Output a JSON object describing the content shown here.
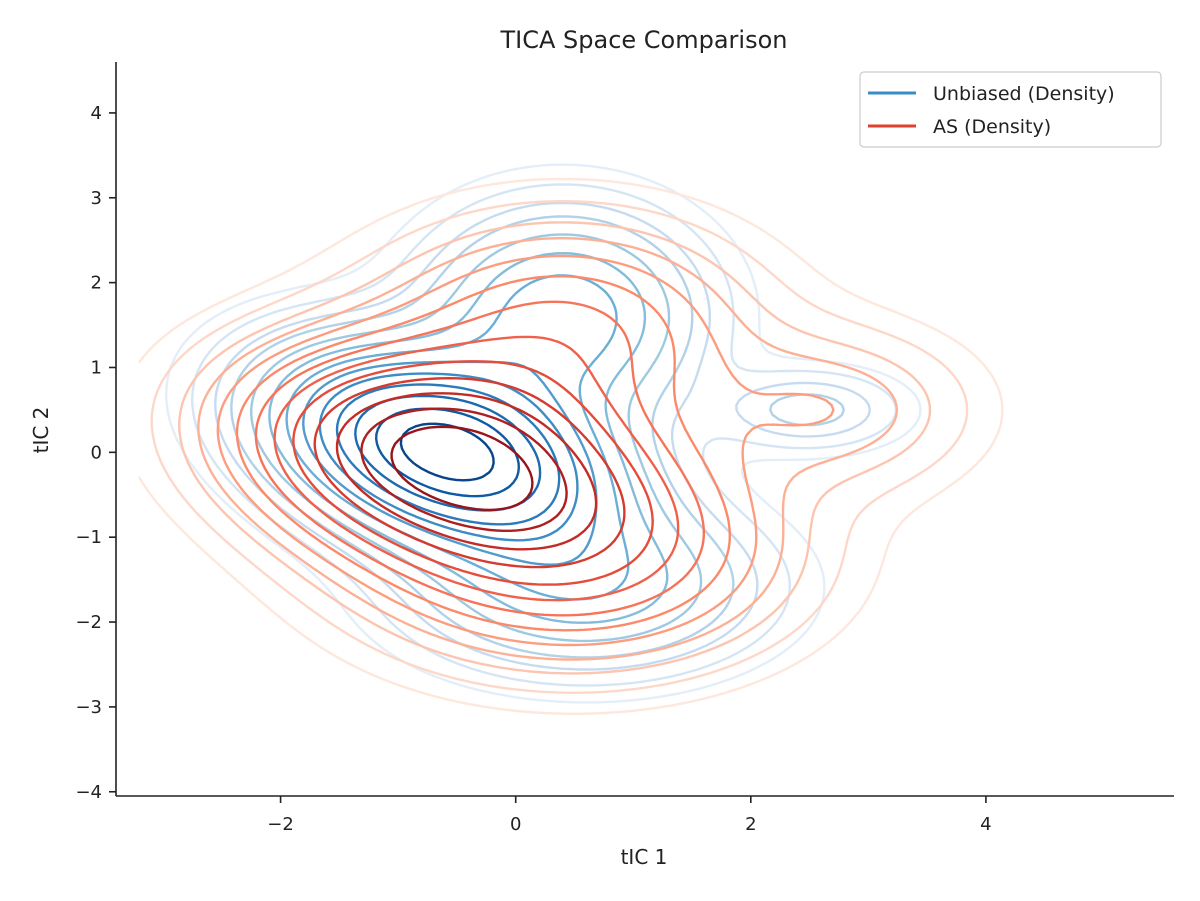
{
  "chart_data": {
    "type": "contour",
    "title": "TICA Space Comparison",
    "xlabel": "tIC 1",
    "ylabel": "tIC 2",
    "xlim": [
      -3.4,
      5.6
    ],
    "ylim": [
      -4.05,
      4.6
    ],
    "xticks": [
      -2,
      0,
      2,
      4
    ],
    "yticks": [
      -4,
      -3,
      -2,
      -1,
      0,
      1,
      2,
      3,
      4
    ],
    "x_tick_labels": [
      "−2",
      "0",
      "2",
      "4"
    ],
    "y_tick_labels": [
      "−4",
      "−3",
      "−2",
      "−1",
      "0",
      "1",
      "2",
      "3",
      "4"
    ],
    "grid": false,
    "legend_position": "top-right",
    "series": [
      {
        "name": "Unbiased (Density)",
        "color": "#3a8cc4",
        "colormap": "Blues",
        "level_colors": [
          "#e3eef9",
          "#d5e5f4",
          "#c6dbef",
          "#b1d2e8",
          "#9ecae1",
          "#84bcdb",
          "#6baed6",
          "#519ccc",
          "#3d8dc4",
          "#2b7bba",
          "#1c6aaf",
          "#0f5aa3",
          "#08458a"
        ],
        "components": [
          {
            "cx": -0.6,
            "cy": 0.0,
            "sx": 0.85,
            "sy": 0.7,
            "rho": -0.35,
            "w": 1.0
          },
          {
            "cx": 0.4,
            "cy": 1.6,
            "sx": 0.7,
            "sy": 0.75,
            "rho": 0.0,
            "w": 0.35
          },
          {
            "cx": 2.5,
            "cy": 0.5,
            "sx": 0.5,
            "sy": 0.3,
            "rho": 0.0,
            "w": 0.12
          },
          {
            "cx": 0.6,
            "cy": -1.6,
            "sx": 0.9,
            "sy": 0.6,
            "rho": 0.0,
            "w": 0.25
          }
        ],
        "levels": [
          0.02,
          0.04,
          0.07,
          0.1,
          0.15,
          0.21,
          0.28,
          0.36,
          0.45,
          0.55,
          0.66,
          0.78,
          0.9
        ]
      },
      {
        "name": "AS (Density)",
        "color": "#e0402e",
        "colormap": "Reds",
        "level_colors": [
          "#fee7dc",
          "#fdd8c9",
          "#fcc5b0",
          "#fcb196",
          "#fc9d7f",
          "#fb8a6a",
          "#f6755a",
          "#ef614b",
          "#e44c3b",
          "#d53b2e",
          "#c32b24",
          "#ad1e1f",
          "#96141a"
        ],
        "components": [
          {
            "cx": -0.6,
            "cy": -0.1,
            "sx": 1.0,
            "sy": 0.75,
            "rho": -0.25,
            "w": 1.0
          },
          {
            "cx": 0.5,
            "cy": -1.2,
            "sx": 1.1,
            "sy": 0.8,
            "rho": 0.0,
            "w": 0.35
          },
          {
            "cx": 0.4,
            "cy": 1.4,
            "sx": 1.0,
            "sy": 0.8,
            "rho": 0.0,
            "w": 0.3
          },
          {
            "cx": 2.7,
            "cy": 0.5,
            "sx": 0.75,
            "sy": 0.6,
            "rho": 0.0,
            "w": 0.14
          }
        ],
        "levels": [
          0.02,
          0.04,
          0.07,
          0.1,
          0.14,
          0.19,
          0.25,
          0.32,
          0.4,
          0.5,
          0.61,
          0.73,
          0.86
        ]
      }
    ]
  }
}
